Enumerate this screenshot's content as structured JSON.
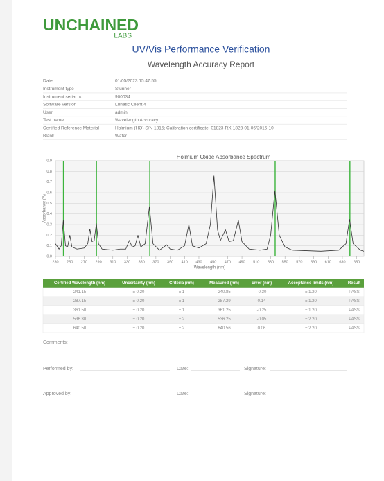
{
  "header": {
    "logo": "UNCHAINED",
    "logo_sub": "LABS",
    "title": "UV/Vis Performance Verification",
    "subtitle": "Wavelength Accuracy Report"
  },
  "info": {
    "rows": [
      [
        "Date",
        "01/05/2023 15:47:55"
      ],
      [
        "Instrument type",
        "Stunner"
      ],
      [
        "Instrument serial no",
        "900034"
      ],
      [
        "Software version",
        "Lunatic Client 4"
      ],
      [
        "User",
        "admin"
      ],
      [
        "Test name",
        "Wavelength Accuracy"
      ],
      [
        "Certified Reference Material",
        "Holmium (HO) S/N 1815; Calibration certificate: 01823-RX-1823-01-06/2016-10"
      ],
      [
        "Blank",
        "Water"
      ]
    ]
  },
  "chart_data": {
    "type": "line",
    "title": "Holmium Oxide Absorbance Spectrum",
    "x_label": "Wavelength (nm)",
    "y_label": "Absorbance (A)",
    "x": [
      230,
      235,
      238,
      241,
      244,
      247,
      250,
      253,
      260,
      270,
      275,
      278,
      281,
      284,
      287,
      290,
      295,
      310,
      320,
      328,
      333,
      337,
      341,
      345,
      349,
      355,
      361,
      366,
      375,
      385,
      390,
      400,
      410,
      416,
      421,
      430,
      440,
      446,
      451,
      456,
      460,
      467,
      472,
      478,
      485,
      490,
      500,
      515,
      525,
      530,
      536,
      542,
      550,
      560,
      600,
      625,
      635,
      640,
      645,
      655,
      660
    ],
    "series": [
      {
        "color": "#333333",
        "values": [
          0.12,
          0.07,
          0.1,
          0.34,
          0.1,
          0.09,
          0.2,
          0.09,
          0.07,
          0.08,
          0.12,
          0.26,
          0.14,
          0.15,
          0.31,
          0.12,
          0.07,
          0.06,
          0.07,
          0.07,
          0.15,
          0.09,
          0.1,
          0.2,
          0.09,
          0.12,
          0.47,
          0.12,
          0.06,
          0.11,
          0.07,
          0.06,
          0.1,
          0.3,
          0.1,
          0.08,
          0.12,
          0.3,
          0.76,
          0.25,
          0.15,
          0.25,
          0.14,
          0.15,
          0.34,
          0.14,
          0.07,
          0.06,
          0.07,
          0.2,
          0.62,
          0.2,
          0.09,
          0.06,
          0.05,
          0.06,
          0.12,
          0.35,
          0.12,
          0.06,
          0.05
        ]
      }
    ],
    "reference_lines": [
      241.15,
      287.15,
      361.5,
      536.3,
      640.5
    ],
    "reference_color": "#3cb43c",
    "xlim": [
      230,
      660
    ],
    "xticks": [
      230,
      250,
      270,
      290,
      310,
      330,
      350,
      370,
      390,
      410,
      430,
      450,
      470,
      490,
      510,
      530,
      550,
      570,
      590,
      610,
      630,
      650
    ],
    "ylim": [
      0,
      0.9
    ],
    "yticks": [
      {
        "value": 0,
        "label": "0.0"
      },
      0.1,
      0.2,
      0.3,
      0.4,
      0.5,
      0.6,
      0.7,
      0.8,
      0.9
    ],
    "grid": true
  },
  "results": {
    "header": [
      "Certified Wavelength (nm)",
      "Uncertainty (nm)",
      "Criteria (nm)",
      "Measured (nm)",
      "Error (nm)",
      "Acceptance limits (nm)",
      "Result"
    ],
    "rows": [
      [
        "241.15",
        "± 0.20",
        "± 1",
        "240.85",
        "-0.30",
        "± 1.20",
        "PASS"
      ],
      [
        "287.15",
        "± 0.20",
        "± 1",
        "287.29",
        "0.14",
        "± 1.20",
        "PASS"
      ],
      [
        "361.50",
        "± 0.20",
        "± 1",
        "361.25",
        "-0.25",
        "± 1.20",
        "PASS"
      ],
      [
        "536.30",
        "± 0.20",
        "± 2",
        "536.25",
        "-0.05",
        "± 2.20",
        "PASS"
      ],
      [
        "640.50",
        "± 0.20",
        "± 2",
        "640.56",
        "0.06",
        "± 2.20",
        "PASS"
      ]
    ]
  },
  "signoff": {
    "comments": "Comments:",
    "performed_by": "Performed by:",
    "date_1": "Date:",
    "signature_1": "Signature:",
    "approved_by": "Approved by:",
    "date_2": "Date:",
    "signature_2": "Signature:"
  }
}
